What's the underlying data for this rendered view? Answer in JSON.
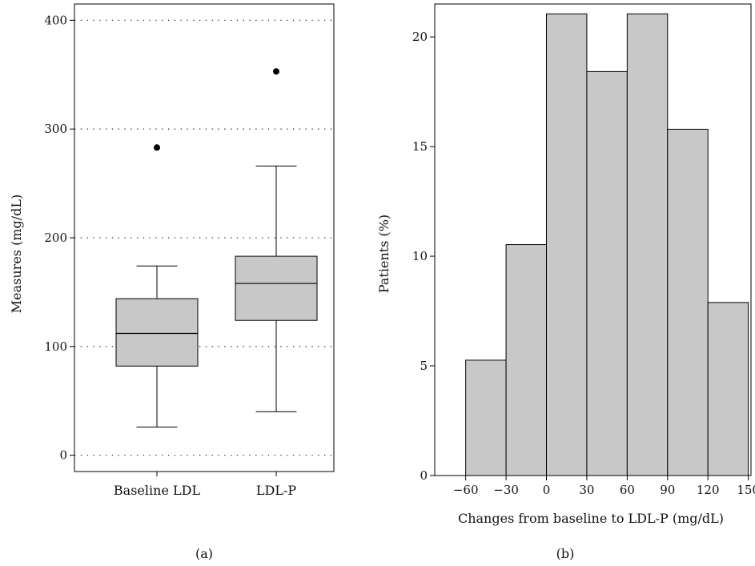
{
  "chart_data": [
    {
      "type": "boxplot",
      "panel_label": "(a)",
      "title": "",
      "xlabel": "",
      "ylabel": "Measures (mg/dL)",
      "ylim": [
        -15,
        415
      ],
      "yticks": [
        0,
        100,
        200,
        300,
        400
      ],
      "grid": "horizontal-dotted",
      "box_fill": "#c8c8c8",
      "categories": [
        "Baseline LDL",
        "LDL-P"
      ],
      "boxes": [
        {
          "category": "Baseline LDL",
          "whisker_low": 26,
          "q1": 82,
          "median": 112,
          "q3": 144,
          "whisker_high": 174,
          "outliers": [
            283
          ]
        },
        {
          "category": "LDL-P",
          "whisker_low": 40,
          "q1": 124,
          "median": 158,
          "q3": 183,
          "whisker_high": 266,
          "outliers": [
            353
          ]
        }
      ]
    },
    {
      "type": "bar",
      "subtype": "histogram",
      "panel_label": "(b)",
      "title": "",
      "xlabel": "Changes from baseline to LDL-P (mg/dL)",
      "ylabel": "Patients (%)",
      "xlim": [
        -83,
        152
      ],
      "ylim": [
        0,
        21.5
      ],
      "xticks": [
        -60,
        -30,
        0,
        30,
        60,
        90,
        120,
        150
      ],
      "yticks": [
        0,
        5,
        10,
        15,
        20
      ],
      "bar_fill": "#c8c8c8",
      "bins": [
        {
          "x0": -60,
          "x1": -30,
          "value": 5.26
        },
        {
          "x0": -30,
          "x1": 0,
          "value": 10.53
        },
        {
          "x0": 0,
          "x1": 30,
          "value": 21.05
        },
        {
          "x0": 30,
          "x1": 60,
          "value": 18.42
        },
        {
          "x0": 60,
          "x1": 90,
          "value": 21.05
        },
        {
          "x0": 90,
          "x1": 120,
          "value": 15.79
        },
        {
          "x0": 120,
          "x1": 150,
          "value": 7.89
        }
      ]
    }
  ]
}
